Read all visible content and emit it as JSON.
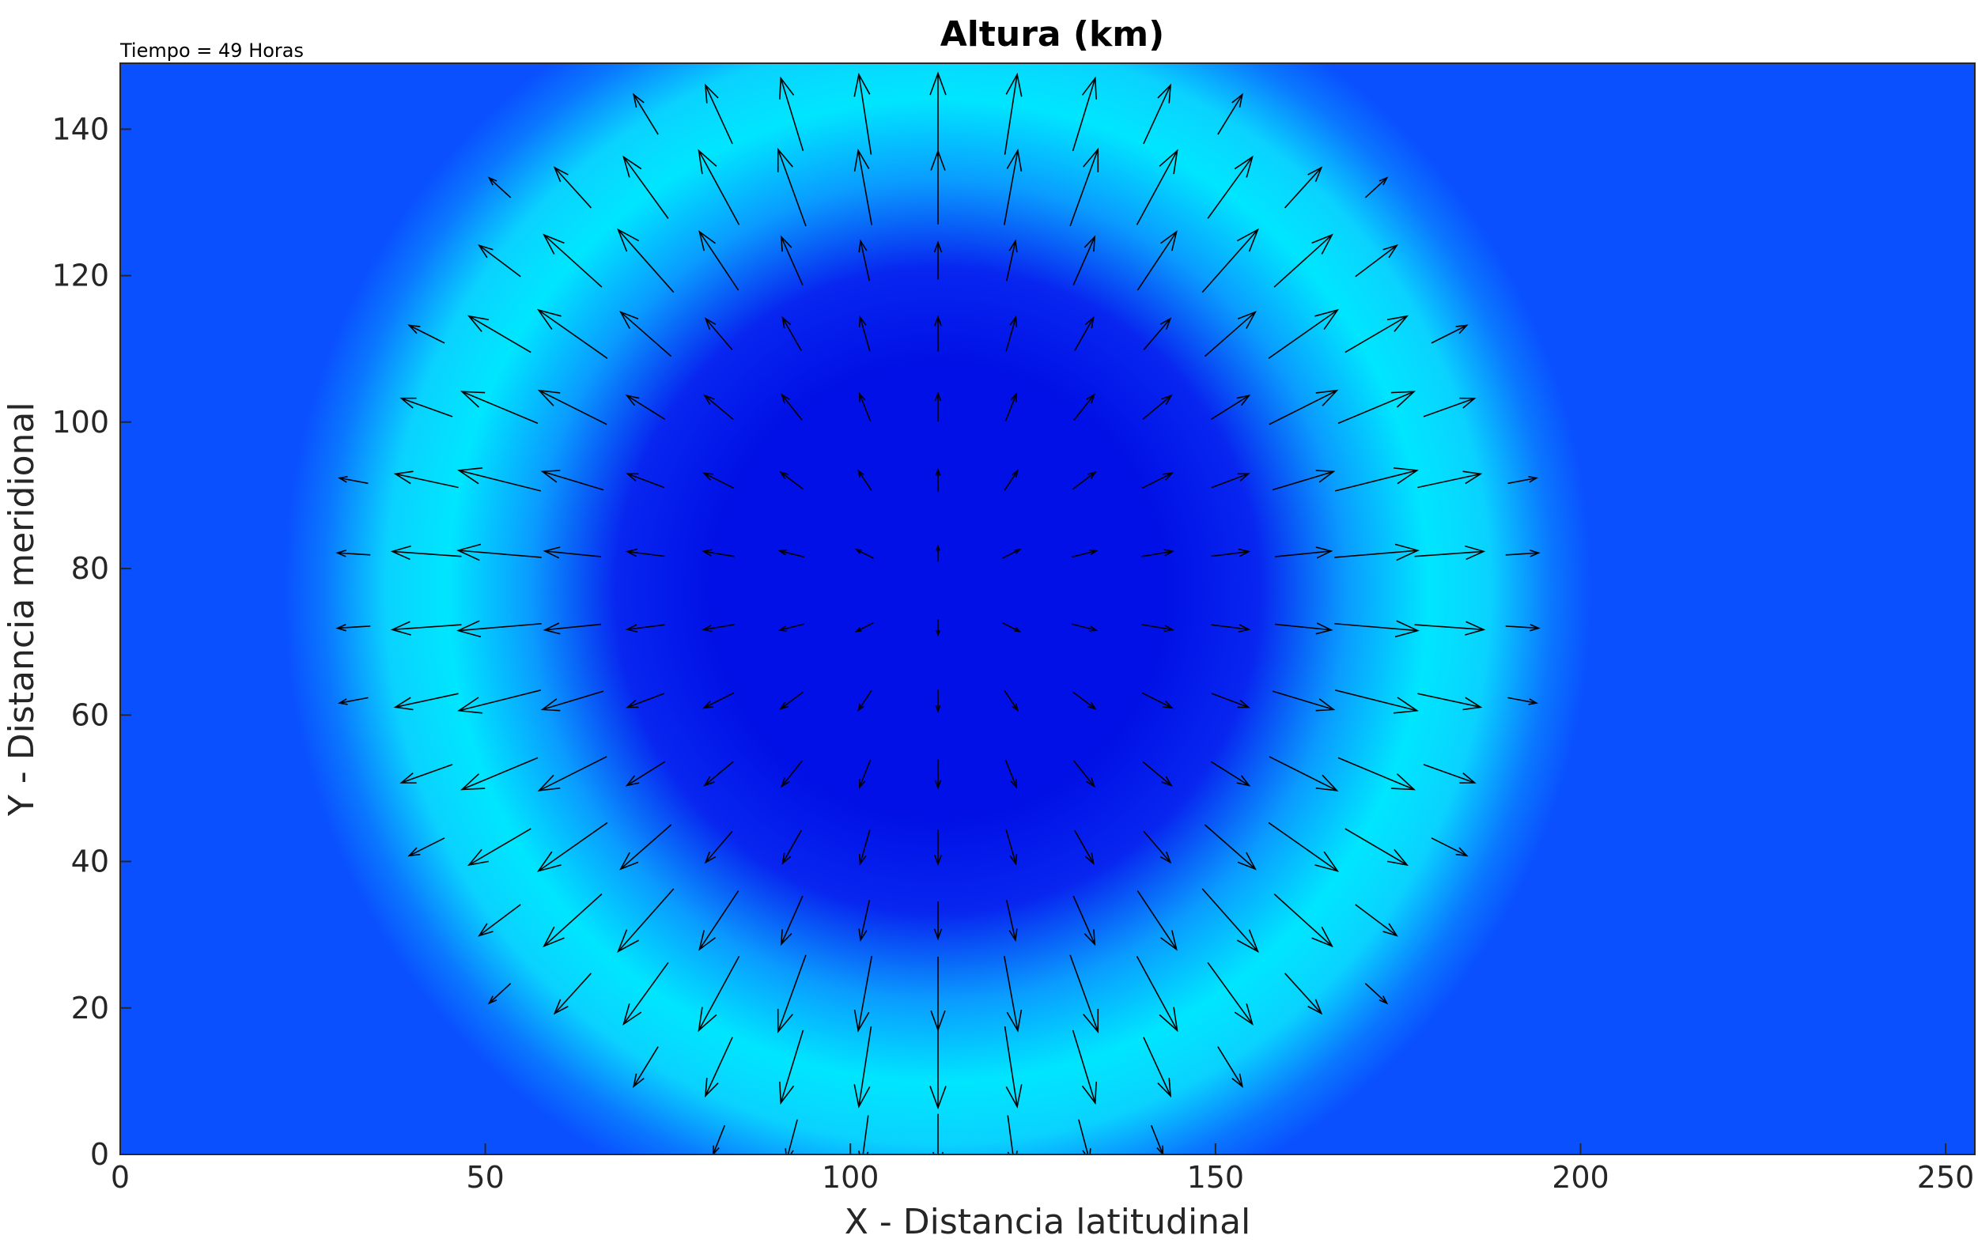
{
  "chart_data": {
    "type": "heatmap",
    "title": "Altura (km)",
    "subtitle": "Tiempo = 49 Horas",
    "xlabel": "X - Distancia latitudinal",
    "ylabel": "Y - Distancia meridional",
    "xlim": [
      0,
      254
    ],
    "ylim": [
      0,
      149
    ],
    "xticks": [
      0,
      50,
      100,
      150,
      200,
      250
    ],
    "xtick_labels": [
      "0",
      "50",
      "100",
      "150",
      "200",
      "250"
    ],
    "yticks": [
      0,
      20,
      40,
      60,
      80,
      100,
      120,
      140
    ],
    "ytick_labels": [
      "0",
      "20",
      "40",
      "60",
      "80",
      "100",
      "120",
      "140"
    ],
    "field": {
      "center": [
        112,
        77
      ],
      "background_color": "#0a50ff",
      "depression_color": "#0010e6",
      "ring_color": "#00e6ff",
      "depression_radius": 44,
      "ring_radius": 70,
      "ring_width": 14
    },
    "quiver": {
      "x_spacing": 10,
      "y_spacing": 10,
      "x_start": 32,
      "y_start": 2,
      "direction": "radial-outward",
      "arrow_color": "#000000"
    },
    "grid": false,
    "legend": "none"
  }
}
